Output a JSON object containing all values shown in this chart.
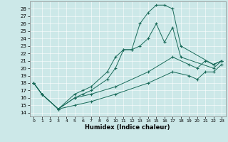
{
  "xlabel": "Humidex (Indice chaleur)",
  "bg_color": "#cce8e8",
  "line_color": "#1a6b5a",
  "xlim": [
    -0.5,
    23.5
  ],
  "ylim": [
    13.5,
    29.0
  ],
  "xticks": [
    0,
    1,
    2,
    3,
    4,
    5,
    6,
    7,
    8,
    9,
    10,
    11,
    12,
    13,
    14,
    15,
    16,
    17,
    18,
    19,
    20,
    21,
    22,
    23
  ],
  "yticks": [
    14,
    15,
    16,
    17,
    18,
    19,
    20,
    21,
    22,
    23,
    24,
    25,
    26,
    27,
    28
  ],
  "lines": [
    {
      "x": [
        0,
        1,
        3,
        5,
        6,
        7,
        9,
        10,
        11,
        12,
        13,
        14,
        15,
        16,
        17,
        18,
        22,
        23
      ],
      "y": [
        18.0,
        16.5,
        14.5,
        16.5,
        17.0,
        17.5,
        19.5,
        21.5,
        22.5,
        22.5,
        26.0,
        27.5,
        28.5,
        28.5,
        28.0,
        23.0,
        20.5,
        21.0
      ]
    },
    {
      "x": [
        0,
        1,
        3,
        5,
        6,
        7,
        9,
        10,
        11,
        12,
        13,
        14,
        15,
        16,
        17,
        18,
        22,
        23
      ],
      "y": [
        18.0,
        16.5,
        14.5,
        16.0,
        16.5,
        17.0,
        18.5,
        20.0,
        22.5,
        22.5,
        23.0,
        24.0,
        26.0,
        23.5,
        25.5,
        21.5,
        20.0,
        21.0
      ]
    },
    {
      "x": [
        0,
        1,
        3,
        5,
        7,
        10,
        14,
        17,
        19,
        20,
        21,
        22,
        23
      ],
      "y": [
        18.0,
        16.5,
        14.5,
        16.0,
        16.5,
        17.5,
        19.5,
        21.5,
        20.5,
        20.0,
        21.0,
        20.5,
        21.0
      ]
    },
    {
      "x": [
        0,
        1,
        3,
        5,
        7,
        10,
        14,
        17,
        19,
        20,
        21,
        22,
        23
      ],
      "y": [
        18.0,
        16.5,
        14.5,
        15.0,
        15.5,
        16.5,
        18.0,
        19.5,
        19.0,
        18.5,
        19.5,
        19.5,
        20.5
      ]
    }
  ]
}
